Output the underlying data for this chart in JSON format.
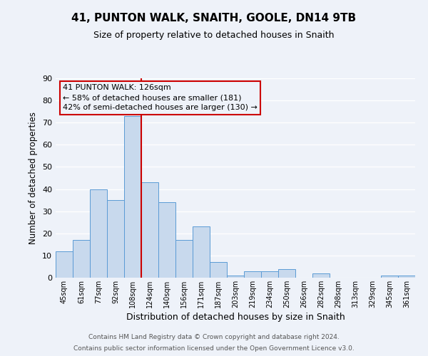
{
  "title": "41, PUNTON WALK, SNAITH, GOOLE, DN14 9TB",
  "subtitle": "Size of property relative to detached houses in Snaith",
  "xlabel": "Distribution of detached houses by size in Snaith",
  "ylabel": "Number of detached properties",
  "categories": [
    "45sqm",
    "61sqm",
    "77sqm",
    "92sqm",
    "108sqm",
    "124sqm",
    "140sqm",
    "156sqm",
    "171sqm",
    "187sqm",
    "203sqm",
    "219sqm",
    "234sqm",
    "250sqm",
    "266sqm",
    "282sqm",
    "298sqm",
    "313sqm",
    "329sqm",
    "345sqm",
    "361sqm"
  ],
  "values": [
    12,
    17,
    40,
    35,
    73,
    43,
    34,
    17,
    23,
    7,
    1,
    3,
    3,
    4,
    0,
    2,
    0,
    0,
    0,
    1,
    1
  ],
  "bar_color": "#c8d9ed",
  "bar_edge_color": "#5b9bd5",
  "property_line_color": "#cc0000",
  "property_line_index": 5,
  "ylim": [
    0,
    90
  ],
  "yticks": [
    0,
    10,
    20,
    30,
    40,
    50,
    60,
    70,
    80,
    90
  ],
  "annotation_title": "41 PUNTON WALK: 126sqm",
  "annotation_line1": "← 58% of detached houses are smaller (181)",
  "annotation_line2": "42% of semi-detached houses are larger (130) →",
  "annotation_box_color": "#cc0000",
  "bg_color": "#eef2f9",
  "grid_color": "#ffffff",
  "footer1": "Contains HM Land Registry data © Crown copyright and database right 2024.",
  "footer2": "Contains public sector information licensed under the Open Government Licence v3.0."
}
